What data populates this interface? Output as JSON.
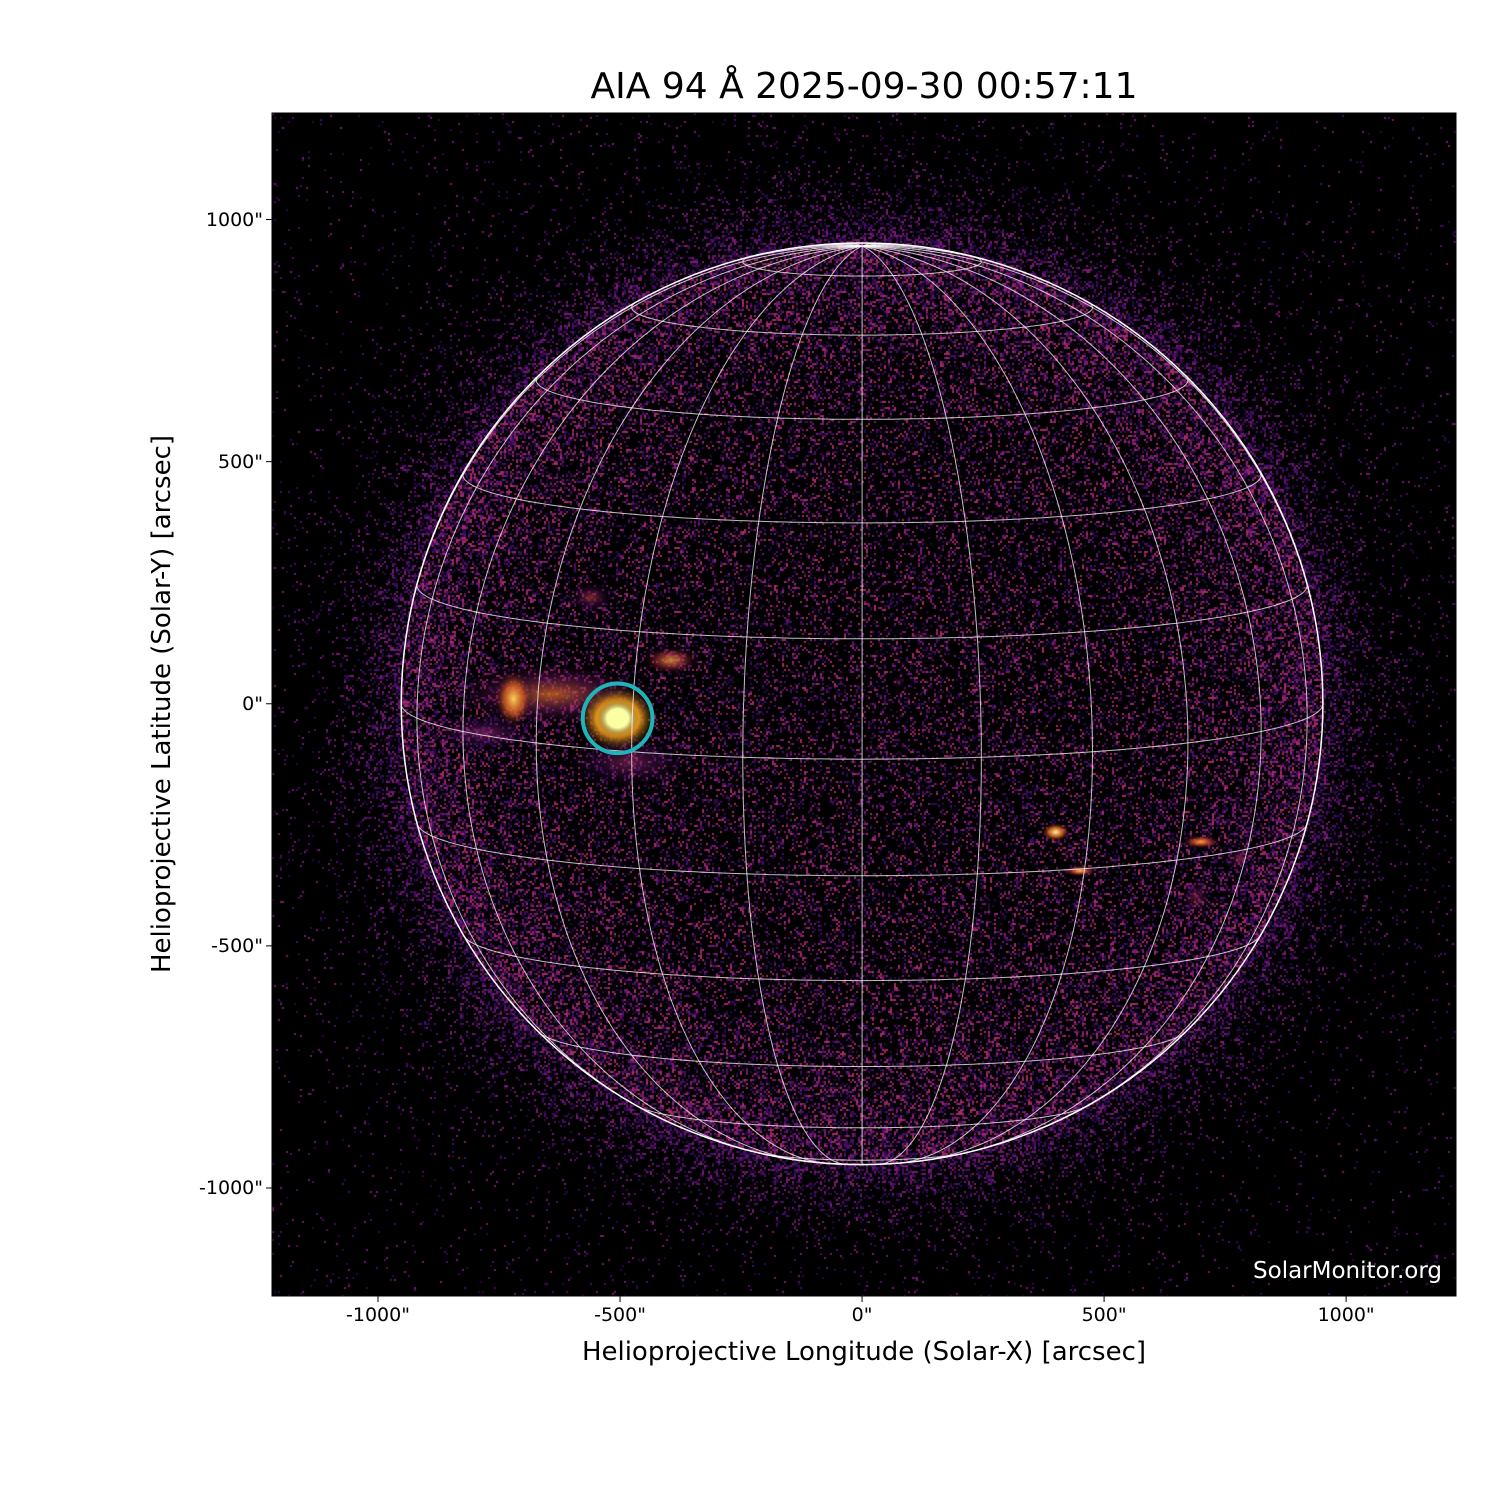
{
  "chart_data": {
    "type": "heatmap",
    "title": "AIA 94 Å 2025-09-30 00:57:11",
    "xlabel": "Helioprojective Longitude (Solar-X) [arcsec]",
    "ylabel": "Helioprojective Latitude (Solar-Y) [arcsec]",
    "xlim": [
      -1219,
      1227
    ],
    "ylim": [
      -1223,
      1220
    ],
    "x_ticks": [
      -1000,
      -500,
      0,
      500,
      1000
    ],
    "y_ticks": [
      1000,
      500,
      0,
      -500,
      -1000
    ],
    "x_tick_labels": [
      "-1000\"",
      "-500\"",
      "0\"",
      "500\"",
      "1000\""
    ],
    "y_tick_labels": [
      "1000\"",
      "500\"",
      "0\"",
      "-500\"",
      "-1000\""
    ],
    "colormap": "inferno",
    "background_color": "#000000",
    "grid": {
      "type": "heliographic",
      "spacing_deg": 15,
      "color": "#ffffff",
      "b0_deg": 6.9
    },
    "solar_radius_arcsec": 952,
    "marker": {
      "shape": "circle",
      "center": [
        -505,
        -30
      ],
      "radius": 72,
      "color": "#1fb5b8"
    },
    "watermark": "SolarMonitor.org"
  }
}
